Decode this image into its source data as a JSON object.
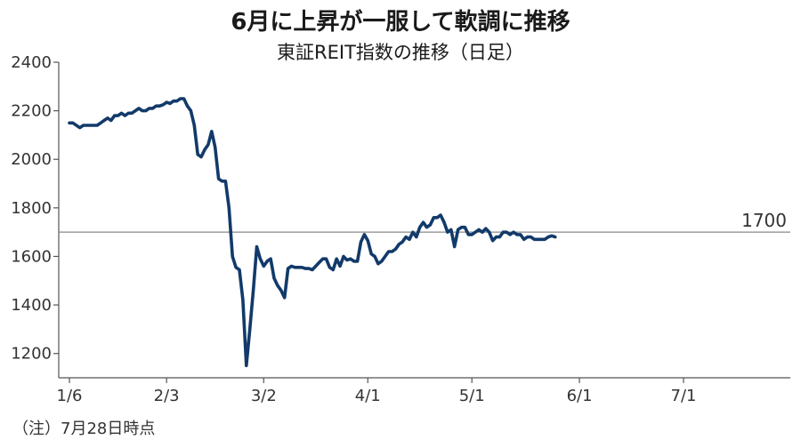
{
  "title": "6月に上昇が一服して軟調に推移",
  "subtitle": "東証REIT指数の推移（日足）",
  "note": "（注）7月28日時点",
  "colors": {
    "line": "#123a6a",
    "axis": "#555555",
    "refline": "#888888"
  },
  "chart_data": {
    "type": "line",
    "title": "6月に上昇が一服して軟調に推移",
    "subtitle": "東証REIT指数の推移（日足）",
    "xlabel": "",
    "ylabel": "",
    "ylim": [
      1100,
      2400
    ],
    "yticks": [
      1200,
      1400,
      1600,
      1800,
      2000,
      2200,
      2400
    ],
    "xticks": [
      {
        "label": "1/6",
        "day": 0
      },
      {
        "label": "2/3",
        "day": 28
      },
      {
        "label": "3/2",
        "day": 56
      },
      {
        "label": "4/1",
        "day": 86
      },
      {
        "label": "5/1",
        "day": 116
      },
      {
        "label": "6/1",
        "day": 147
      },
      {
        "label": "7/1",
        "day": 177
      }
    ],
    "xlim": [
      -1,
      206
    ],
    "reference_line": {
      "value": 1700,
      "label": "1700"
    },
    "grid": false,
    "series": [
      {
        "points": [
          [
            0,
            2150
          ],
          [
            1,
            2150
          ],
          [
            3,
            2130
          ],
          [
            4,
            2140
          ],
          [
            7,
            2140
          ],
          [
            8,
            2140
          ],
          [
            9,
            2150
          ],
          [
            10,
            2160
          ],
          [
            11,
            2170
          ],
          [
            12,
            2160
          ],
          [
            13,
            2180
          ],
          [
            14,
            2180
          ],
          [
            15,
            2190
          ],
          [
            16,
            2180
          ],
          [
            17,
            2190
          ],
          [
            18,
            2190
          ],
          [
            19,
            2200
          ],
          [
            20,
            2210
          ],
          [
            21,
            2200
          ],
          [
            22,
            2200
          ],
          [
            23,
            2210
          ],
          [
            24,
            2210
          ],
          [
            25,
            2220
          ],
          [
            26,
            2220
          ],
          [
            27,
            2225
          ],
          [
            28,
            2235
          ],
          [
            29,
            2230
          ],
          [
            30,
            2240
          ],
          [
            31,
            2240
          ],
          [
            32,
            2250
          ],
          [
            33,
            2250
          ],
          [
            34,
            2220
          ],
          [
            35,
            2200
          ],
          [
            36,
            2140
          ],
          [
            37,
            2020
          ],
          [
            38,
            2010
          ],
          [
            39,
            2040
          ],
          [
            40,
            2060
          ],
          [
            41,
            2115
          ],
          [
            42,
            2050
          ],
          [
            43,
            1920
          ],
          [
            44,
            1910
          ],
          [
            45,
            1910
          ],
          [
            46,
            1800
          ],
          [
            47,
            1600
          ],
          [
            48,
            1555
          ],
          [
            49,
            1545
          ],
          [
            50,
            1420
          ],
          [
            51,
            1150
          ],
          [
            52,
            1300
          ],
          [
            53,
            1460
          ],
          [
            54,
            1640
          ],
          [
            55,
            1590
          ],
          [
            56,
            1560
          ],
          [
            57,
            1580
          ],
          [
            58,
            1590
          ],
          [
            59,
            1510
          ],
          [
            60,
            1480
          ],
          [
            61,
            1460
          ],
          [
            62,
            1430
          ],
          [
            63,
            1550
          ],
          [
            64,
            1560
          ],
          [
            65,
            1555
          ],
          [
            66,
            1555
          ],
          [
            67,
            1555
          ],
          [
            68,
            1550
          ],
          [
            69,
            1550
          ],
          [
            70,
            1545
          ],
          [
            71,
            1560
          ],
          [
            72,
            1575
          ],
          [
            73,
            1590
          ],
          [
            74,
            1590
          ],
          [
            75,
            1555
          ],
          [
            76,
            1545
          ],
          [
            77,
            1590
          ],
          [
            78,
            1560
          ],
          [
            79,
            1600
          ],
          [
            80,
            1585
          ],
          [
            81,
            1590
          ],
          [
            82,
            1580
          ],
          [
            83,
            1580
          ],
          [
            84,
            1660
          ],
          [
            85,
            1690
          ],
          [
            86,
            1665
          ],
          [
            87,
            1610
          ],
          [
            88,
            1600
          ],
          [
            89,
            1570
          ],
          [
            90,
            1580
          ],
          [
            91,
            1600
          ],
          [
            92,
            1620
          ],
          [
            93,
            1620
          ],
          [
            94,
            1630
          ],
          [
            95,
            1650
          ],
          [
            96,
            1660
          ],
          [
            97,
            1680
          ],
          [
            98,
            1670
          ],
          [
            99,
            1700
          ],
          [
            100,
            1680
          ],
          [
            101,
            1720
          ],
          [
            102,
            1740
          ],
          [
            103,
            1720
          ],
          [
            104,
            1730
          ],
          [
            105,
            1760
          ],
          [
            106,
            1760
          ],
          [
            107,
            1770
          ],
          [
            108,
            1740
          ],
          [
            109,
            1700
          ],
          [
            110,
            1710
          ],
          [
            111,
            1640
          ],
          [
            112,
            1710
          ],
          [
            113,
            1720
          ],
          [
            114,
            1720
          ],
          [
            115,
            1690
          ],
          [
            116,
            1690
          ],
          [
            117,
            1700
          ],
          [
            118,
            1710
          ],
          [
            119,
            1700
          ],
          [
            120,
            1715
          ],
          [
            121,
            1700
          ],
          [
            122,
            1665
          ],
          [
            123,
            1680
          ],
          [
            124,
            1680
          ],
          [
            125,
            1700
          ],
          [
            126,
            1700
          ],
          [
            127,
            1690
          ],
          [
            128,
            1700
          ],
          [
            129,
            1690
          ],
          [
            130,
            1690
          ],
          [
            131,
            1670
          ],
          [
            132,
            1680
          ],
          [
            133,
            1680
          ],
          [
            134,
            1670
          ],
          [
            135,
            1670
          ],
          [
            136,
            1670
          ],
          [
            137,
            1670
          ],
          [
            138,
            1680
          ],
          [
            139,
            1685
          ],
          [
            140,
            1680
          ]
        ]
      }
    ]
  }
}
